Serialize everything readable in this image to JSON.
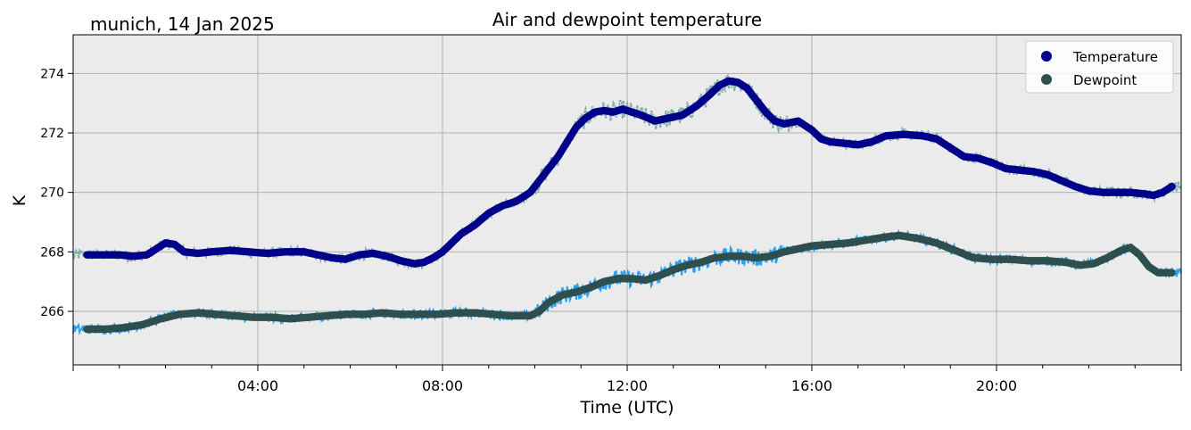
{
  "chart_data": {
    "type": "line",
    "title": "Air and dewpoint temperature",
    "subtitle": "munich, 14 Jan 2025",
    "xlabel": "Time (UTC)",
    "ylabel": "K",
    "xlim": [
      0,
      24
    ],
    "ylim": [
      264.2,
      275.3
    ],
    "x_ticks": [
      {
        "value": 4,
        "label": "04:00"
      },
      {
        "value": 8,
        "label": "08:00"
      },
      {
        "value": 12,
        "label": "12:00"
      },
      {
        "value": 16,
        "label": "16:00"
      },
      {
        "value": 20,
        "label": "20:00"
      }
    ],
    "y_ticks": [
      266,
      268,
      270,
      272,
      274
    ],
    "grid": true,
    "legend_position": "top-right",
    "background_color": "#ebebeb",
    "series": [
      {
        "name": "Temperature",
        "style": "markers-smoothed",
        "color": "#00008b",
        "raw_color": "#7aa9aa",
        "x": [
          0.3,
          0.6,
          1.0,
          1.3,
          1.6,
          1.8,
          2.0,
          2.2,
          2.4,
          2.7,
          3.0,
          3.4,
          3.8,
          4.2,
          4.6,
          5.0,
          5.3,
          5.6,
          5.9,
          6.2,
          6.5,
          6.8,
          7.1,
          7.4,
          7.6,
          7.8,
          8.0,
          8.2,
          8.4,
          8.7,
          9.0,
          9.3,
          9.6,
          9.9,
          10.1,
          10.3,
          10.5,
          10.7,
          10.9,
          11.1,
          11.3,
          11.5,
          11.7,
          11.9,
          12.1,
          12.3,
          12.6,
          12.9,
          13.2,
          13.5,
          13.8,
          14.0,
          14.2,
          14.4,
          14.6,
          14.8,
          15.0,
          15.2,
          15.4,
          15.7,
          16.0,
          16.2,
          16.4,
          16.7,
          17.0,
          17.3,
          17.6,
          18.0,
          18.4,
          18.7,
          19.0,
          19.3,
          19.6,
          19.9,
          20.2,
          20.5,
          20.8,
          21.1,
          21.4,
          21.7,
          22.0,
          22.3,
          22.6,
          22.9,
          23.2,
          23.4,
          23.6,
          23.8
        ],
        "values": [
          267.9,
          267.9,
          267.9,
          267.85,
          267.9,
          268.1,
          268.3,
          268.25,
          268.0,
          267.95,
          268.0,
          268.05,
          268.0,
          267.95,
          268.0,
          268.0,
          267.9,
          267.8,
          267.75,
          267.9,
          267.95,
          267.85,
          267.7,
          267.6,
          267.65,
          267.8,
          268.0,
          268.3,
          268.6,
          268.9,
          269.3,
          269.55,
          269.7,
          270.0,
          270.4,
          270.8,
          271.2,
          271.7,
          272.2,
          272.5,
          272.7,
          272.75,
          272.7,
          272.8,
          272.7,
          272.6,
          272.4,
          272.5,
          272.6,
          272.9,
          273.3,
          273.6,
          273.75,
          273.7,
          273.5,
          273.1,
          272.7,
          272.4,
          272.3,
          272.4,
          272.1,
          271.8,
          271.7,
          271.65,
          271.6,
          271.7,
          271.9,
          271.95,
          271.9,
          271.8,
          271.5,
          271.2,
          271.15,
          271.0,
          270.8,
          270.75,
          270.7,
          270.6,
          270.4,
          270.2,
          270.05,
          270.0,
          270.0,
          270.0,
          269.95,
          269.9,
          270.0,
          270.2
        ]
      },
      {
        "name": "Dewpoint",
        "style": "markers-smoothed",
        "color": "#2f4f4f",
        "raw_color": "#1e9df1",
        "x": [
          0.3,
          0.7,
          1.1,
          1.5,
          1.9,
          2.3,
          2.7,
          3.1,
          3.5,
          3.9,
          4.3,
          4.7,
          5.1,
          5.5,
          5.9,
          6.3,
          6.7,
          7.1,
          7.5,
          7.9,
          8.3,
          8.7,
          9.1,
          9.5,
          9.9,
          10.1,
          10.3,
          10.6,
          10.9,
          11.2,
          11.5,
          11.8,
          12.1,
          12.4,
          12.7,
          13.0,
          13.3,
          13.6,
          13.9,
          14.2,
          14.5,
          14.8,
          15.1,
          15.4,
          15.7,
          16.0,
          16.4,
          16.8,
          17.2,
          17.6,
          17.9,
          18.3,
          18.7,
          19.1,
          19.5,
          19.9,
          20.3,
          20.7,
          21.1,
          21.5,
          21.8,
          22.1,
          22.4,
          22.7,
          22.9,
          23.1,
          23.3,
          23.5,
          23.8
        ],
        "values": [
          265.4,
          265.4,
          265.45,
          265.55,
          265.75,
          265.9,
          265.95,
          265.9,
          265.85,
          265.8,
          265.8,
          265.75,
          265.8,
          265.85,
          265.9,
          265.9,
          265.95,
          265.9,
          265.9,
          265.9,
          265.95,
          265.95,
          265.9,
          265.85,
          265.85,
          266.0,
          266.3,
          266.55,
          266.65,
          266.8,
          267.0,
          267.1,
          267.1,
          267.05,
          267.2,
          267.4,
          267.55,
          267.65,
          267.8,
          267.85,
          267.85,
          267.8,
          267.85,
          268.0,
          268.1,
          268.2,
          268.25,
          268.3,
          268.4,
          268.5,
          268.55,
          268.45,
          268.3,
          268.05,
          267.8,
          267.75,
          267.75,
          267.7,
          267.7,
          267.65,
          267.55,
          267.6,
          267.8,
          268.05,
          268.15,
          267.9,
          267.5,
          267.3,
          267.3
        ]
      }
    ]
  }
}
